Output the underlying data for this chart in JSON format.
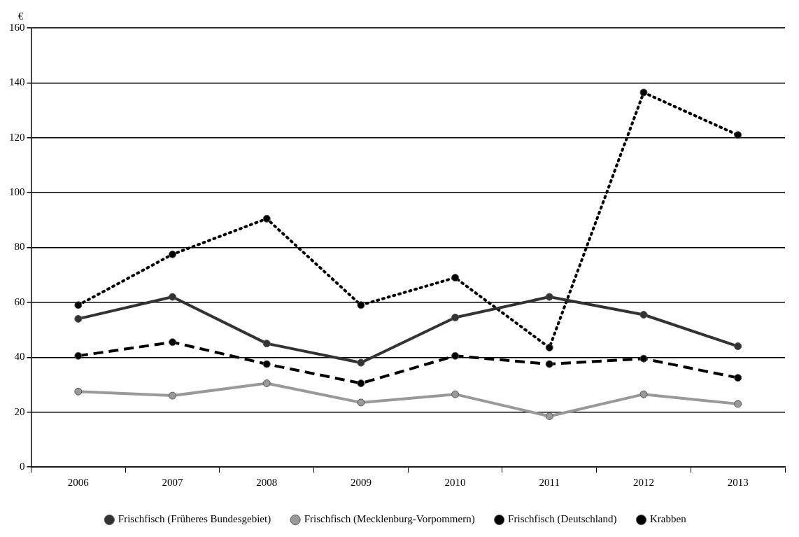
{
  "chart_data": {
    "type": "line",
    "ylabel": "€",
    "categories": [
      "2006",
      "2007",
      "2008",
      "2009",
      "2010",
      "2011",
      "2012",
      "2013"
    ],
    "ylim": [
      0,
      160
    ],
    "yticks": [
      0,
      20,
      40,
      60,
      80,
      100,
      120,
      140,
      160
    ],
    "grid": "y",
    "legend": "bottom",
    "marker": "circle",
    "series": [
      {
        "name": "Frischfisch (Früheres Bundesgebiet)",
        "color": "#333333",
        "line_style": "solid",
        "values": [
          54,
          62,
          45,
          38,
          54.5,
          62,
          55.5,
          44
        ]
      },
      {
        "name": "Frischfisch (Mecklenburg-Vorpommern)",
        "color": "#999999",
        "line_style": "solid",
        "values": [
          27.5,
          26,
          30.5,
          23.5,
          26.5,
          18.5,
          26.5,
          23
        ]
      },
      {
        "name": "Frischfisch (Deutschland)",
        "color": "#000000",
        "line_style": "dashed",
        "values": [
          40.5,
          45.5,
          37.5,
          30.5,
          40.5,
          37.5,
          39.5,
          32.5
        ]
      },
      {
        "name": "Krabben",
        "color": "#000000",
        "line_style": "dotted",
        "values": [
          59,
          77.5,
          90.5,
          59,
          69,
          43.5,
          136.5,
          121
        ]
      }
    ]
  }
}
